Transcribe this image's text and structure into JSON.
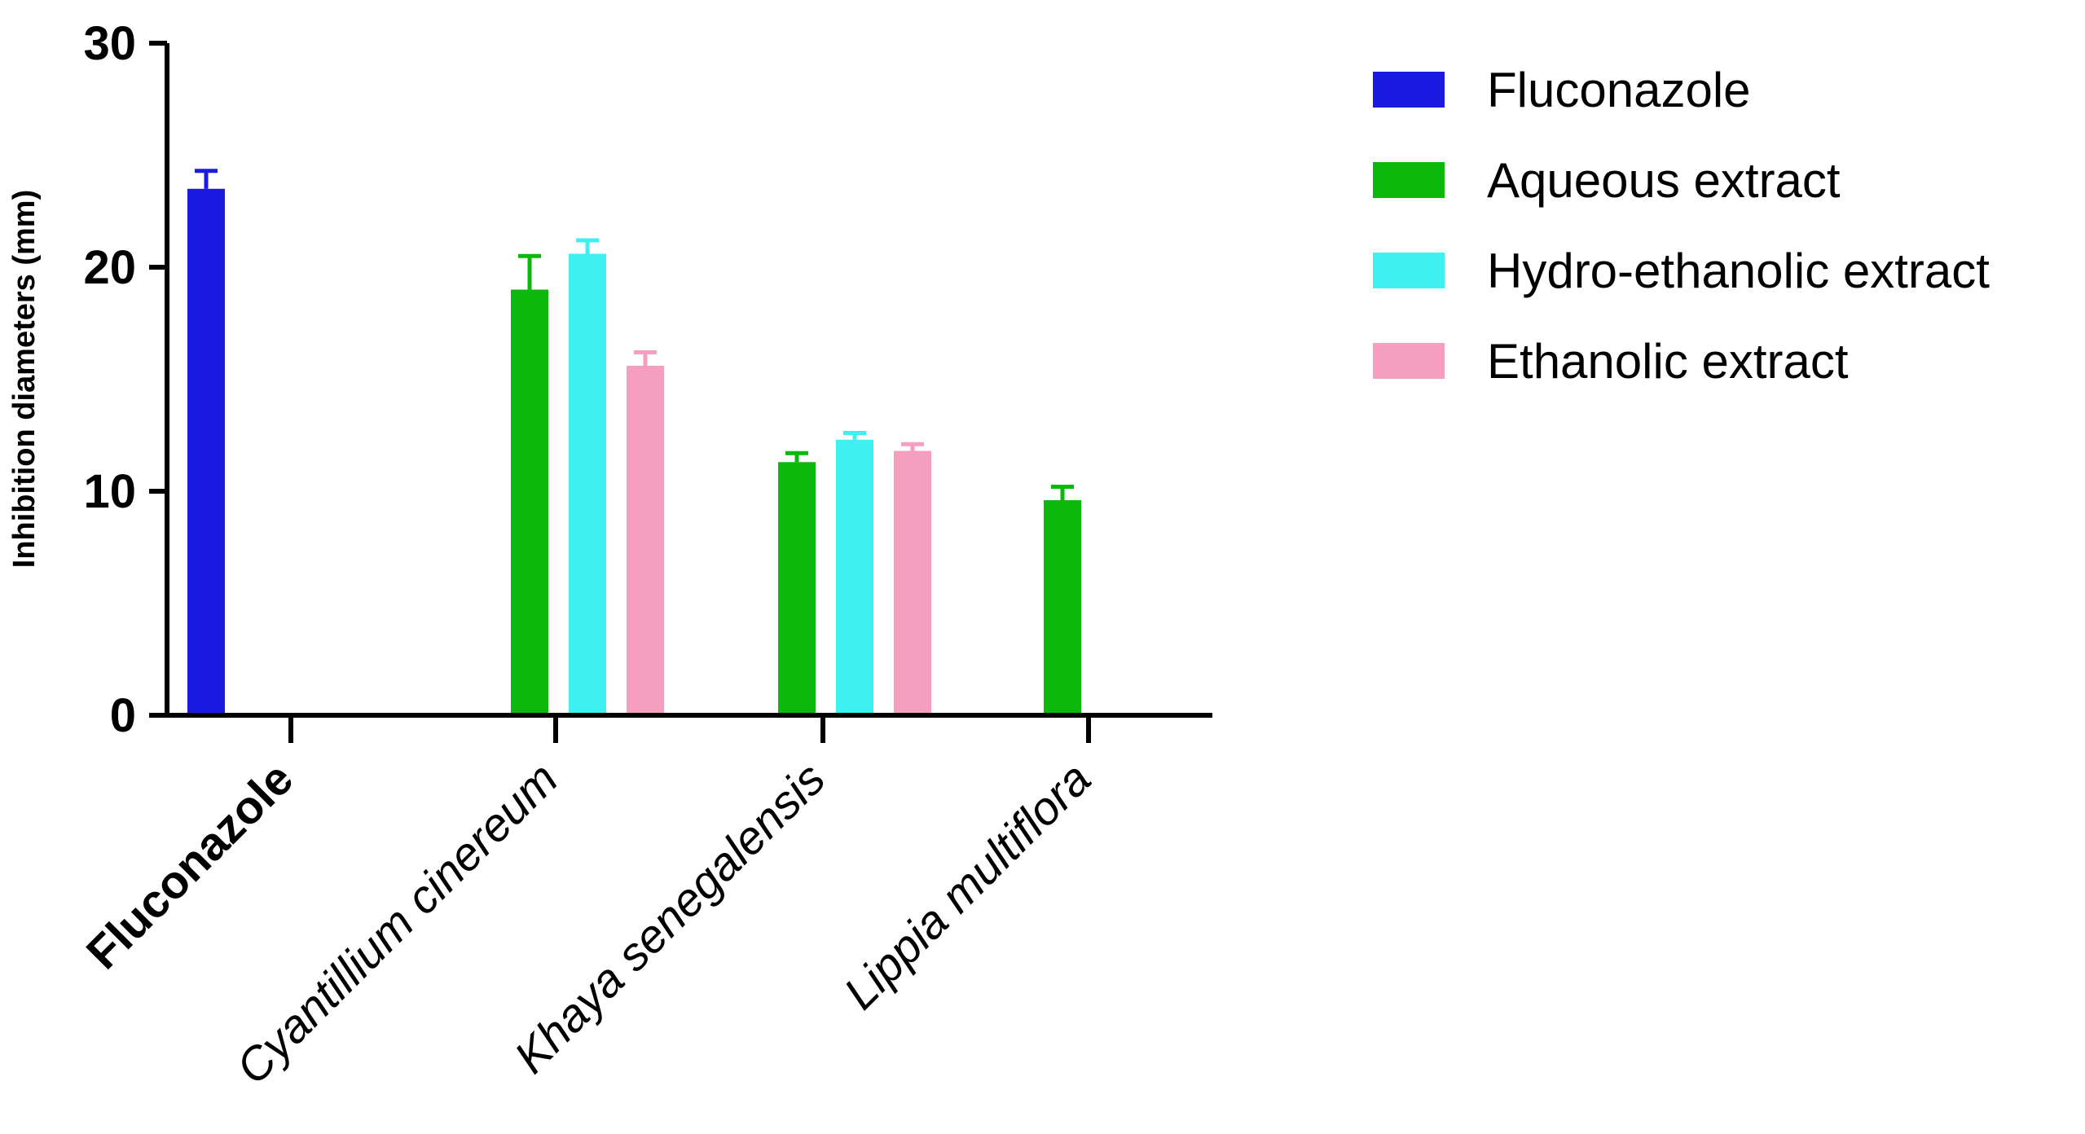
{
  "chart_data": {
    "type": "bar",
    "title": "",
    "xlabel": "",
    "ylabel": "Inhibition diameters (mm)",
    "ylim": [
      0,
      30
    ],
    "yticks": [
      "0",
      "10",
      "20",
      "30"
    ],
    "grid": false,
    "legend_position": "top-right",
    "categories": [
      "Fluconazole",
      "Cyantillium cinereum",
      "Khaya senegalensis",
      "Lippia multiflora"
    ],
    "series": [
      {
        "name": "Fluconazole",
        "color": "#1a1ae0",
        "values": [
          23.5,
          null,
          null,
          null
        ],
        "errors": [
          0.8,
          null,
          null,
          null
        ]
      },
      {
        "name": "Aqueous extract",
        "color": "#0db80d",
        "values": [
          null,
          19.0,
          11.3,
          9.6
        ],
        "errors": [
          null,
          1.5,
          0.4,
          0.6
        ]
      },
      {
        "name": "Hydro-ethanolic extract",
        "color": "#3ff0f0",
        "values": [
          null,
          20.6,
          12.3,
          null
        ],
        "errors": [
          null,
          0.6,
          0.3,
          null
        ]
      },
      {
        "name": "Ethanolic extract",
        "color": "#f59ec0",
        "values": [
          null,
          15.6,
          11.8,
          null
        ],
        "errors": [
          null,
          0.6,
          0.3,
          null
        ]
      }
    ]
  }
}
